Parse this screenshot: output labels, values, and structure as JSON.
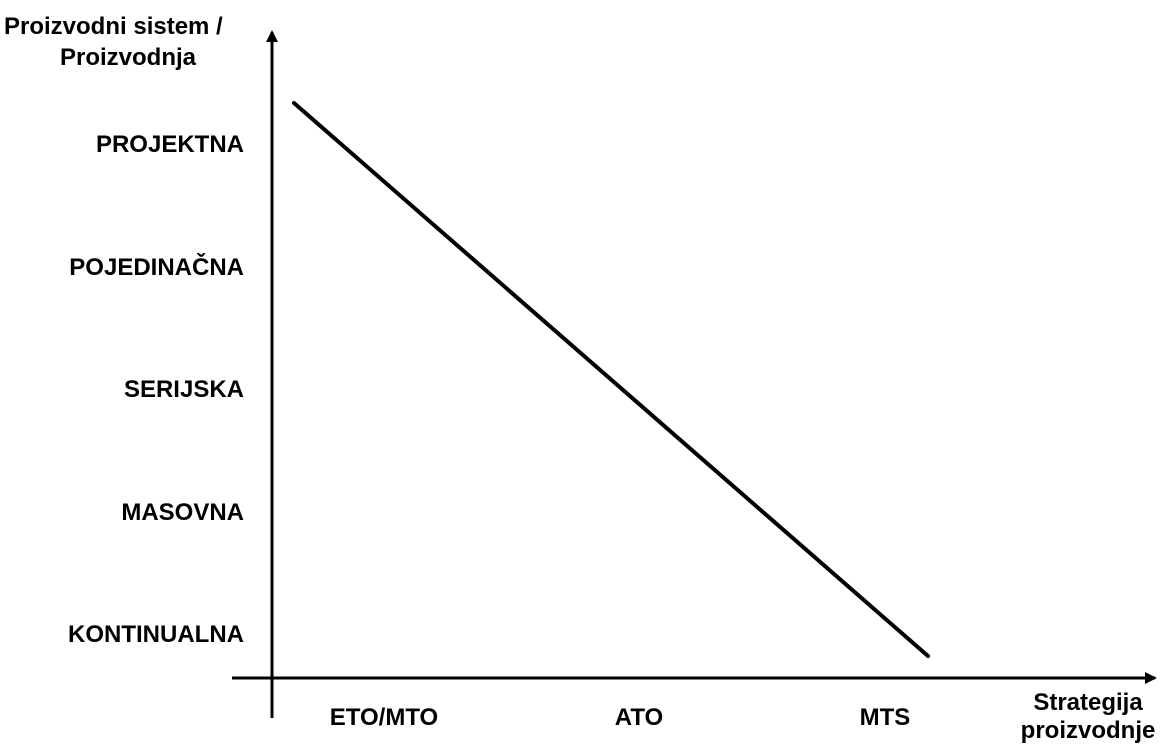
{
  "chart_data": {
    "type": "line",
    "ylabel_lines": [
      "Proizvodni sistem /",
      "Proizvodnja"
    ],
    "xlabel_lines": [
      "Strategija",
      "proizvodnje"
    ],
    "y_categories": [
      "PROJEKTNA",
      "POJEDINAČNA",
      "SERIJSKA",
      "MASOVNA",
      "KONTINUALNA"
    ],
    "x_categories": [
      "ETO/MTO",
      "ATO",
      "MTS"
    ],
    "series": [
      {
        "points": [
          {
            "x": "ETO/MTO",
            "y": "PROJEKTNA"
          },
          {
            "x": "MTS",
            "y": "KONTINUALNA"
          }
        ]
      }
    ],
    "line_color": "#000000",
    "axis_color": "#000000",
    "grid": false,
    "legend": false
  }
}
